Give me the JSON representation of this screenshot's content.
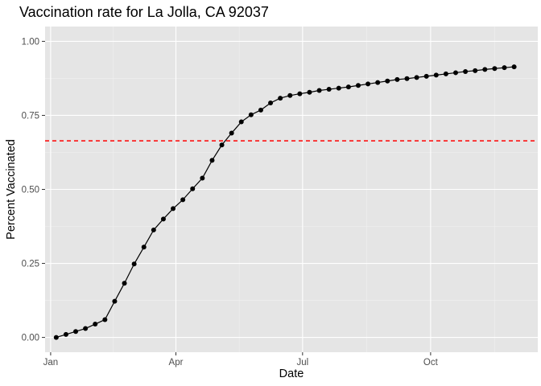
{
  "chart_data": {
    "type": "line",
    "title": "Vaccination rate for La Jolla, CA 92037",
    "xlabel": "Date",
    "ylabel": "Percent Vaccinated",
    "x_axis": {
      "type": "date",
      "range": [
        "2020-12-28",
        "2021-12-17"
      ],
      "ticks": [
        {
          "date": "2021-01-01",
          "label": "Jan"
        },
        {
          "date": "2021-04-01",
          "label": "Apr"
        },
        {
          "date": "2021-07-01",
          "label": "Jul"
        },
        {
          "date": "2021-10-01",
          "label": "Oct"
        }
      ]
    },
    "y_axis": {
      "range": [
        -0.05,
        1.05
      ],
      "ticks": [
        {
          "value": 0,
          "label": "0.00"
        },
        {
          "value": 0.25,
          "label": "0.25"
        },
        {
          "value": 0.5,
          "label": "0.50"
        },
        {
          "value": 0.75,
          "label": "0.75"
        },
        {
          "value": 1,
          "label": "1.00"
        }
      ]
    },
    "grid": true,
    "reference_line": {
      "value": 0.664,
      "color": "#ff0000",
      "style": "dashed"
    },
    "series": [
      {
        "color": "#000000",
        "points": [
          [
            "2021-01-05",
            0.0
          ],
          [
            "2021-01-12",
            0.01
          ],
          [
            "2021-01-19",
            0.02
          ],
          [
            "2021-01-26",
            0.03
          ],
          [
            "2021-02-02",
            0.045
          ],
          [
            "2021-02-09",
            0.06
          ],
          [
            "2021-02-16",
            0.122
          ],
          [
            "2021-02-23",
            0.183
          ],
          [
            "2021-03-02",
            0.248
          ],
          [
            "2021-03-09",
            0.305
          ],
          [
            "2021-03-16",
            0.363
          ],
          [
            "2021-03-23",
            0.4
          ],
          [
            "2021-03-30",
            0.435
          ],
          [
            "2021-04-06",
            0.465
          ],
          [
            "2021-04-13",
            0.502
          ],
          [
            "2021-04-20",
            0.538
          ],
          [
            "2021-04-27",
            0.598
          ],
          [
            "2021-05-04",
            0.65
          ],
          [
            "2021-05-11",
            0.69
          ],
          [
            "2021-05-18",
            0.728
          ],
          [
            "2021-05-25",
            0.752
          ],
          [
            "2021-06-01",
            0.768
          ],
          [
            "2021-06-08",
            0.792
          ],
          [
            "2021-06-15",
            0.808
          ],
          [
            "2021-06-22",
            0.817
          ],
          [
            "2021-06-29",
            0.823
          ],
          [
            "2021-07-06",
            0.828
          ],
          [
            "2021-07-13",
            0.834
          ],
          [
            "2021-07-20",
            0.838
          ],
          [
            "2021-07-27",
            0.842
          ],
          [
            "2021-08-03",
            0.846
          ],
          [
            "2021-08-10",
            0.851
          ],
          [
            "2021-08-17",
            0.856
          ],
          [
            "2021-08-24",
            0.861
          ],
          [
            "2021-08-31",
            0.866
          ],
          [
            "2021-09-07",
            0.871
          ],
          [
            "2021-09-14",
            0.874
          ],
          [
            "2021-09-21",
            0.878
          ],
          [
            "2021-09-28",
            0.882
          ],
          [
            "2021-10-05",
            0.886
          ],
          [
            "2021-10-12",
            0.89
          ],
          [
            "2021-10-19",
            0.894
          ],
          [
            "2021-10-26",
            0.898
          ],
          [
            "2021-11-02",
            0.901
          ],
          [
            "2021-11-09",
            0.905
          ],
          [
            "2021-11-16",
            0.908
          ],
          [
            "2021-11-23",
            0.911
          ],
          [
            "2021-11-30",
            0.914
          ]
        ]
      }
    ],
    "colors": {
      "panel_background": "#e5e5e5",
      "grid_major": "#ffffff",
      "grid_minor": "#f2f2f2",
      "tick_label": "#4d4d4d"
    }
  }
}
